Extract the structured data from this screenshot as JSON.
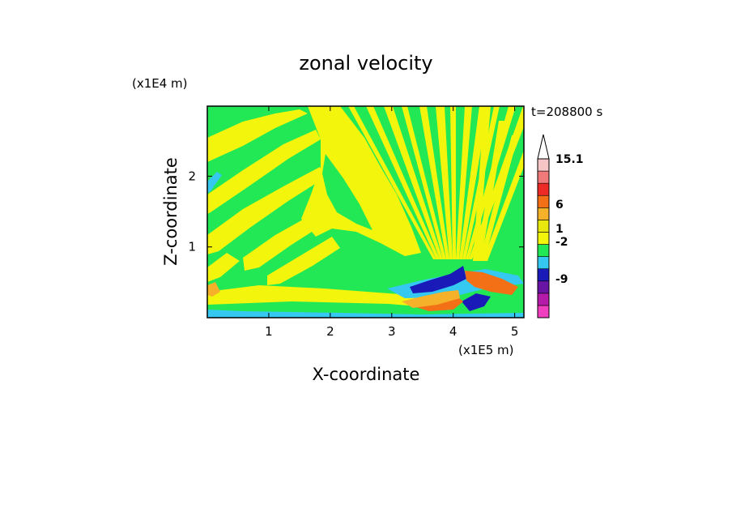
{
  "chart_data": {
    "type": "heatmap",
    "title": "zonal velocity",
    "time_label": "t=208800 s",
    "xlabel": "X-coordinate",
    "ylabel": "Z-coordinate",
    "x_scale_label": "(x1E5 m)",
    "y_scale_label": "(x1E4 m)",
    "xlim": [
      0,
      5.15
    ],
    "ylim": [
      0,
      2.99
    ],
    "x_ticks": [
      1,
      2,
      3,
      4,
      5
    ],
    "y_ticks": [
      1,
      2
    ],
    "colorbar": {
      "labels": [
        {
          "text": "15.1",
          "value": 15.1
        },
        {
          "text": "6",
          "value": 6
        },
        {
          "text": "1",
          "value": 1
        },
        {
          "text": "-2",
          "value": -2
        },
        {
          "text": "-9",
          "value": -9
        }
      ],
      "levels": [
        {
          "color": "#f03ec0"
        },
        {
          "color": "#b41ba8"
        },
        {
          "color": "#6a14a6"
        },
        {
          "color": "#1a1ab8"
        },
        {
          "color": "#35c8f0"
        },
        {
          "color": "#22e855"
        },
        {
          "color": "#f3f50d"
        },
        {
          "color": "#e8e80e"
        },
        {
          "color": "#f5b12a"
        },
        {
          "color": "#f37016"
        },
        {
          "color": "#ee2a26"
        },
        {
          "color": "#f07a7a"
        },
        {
          "color": "#f6c6c6"
        }
      ]
    },
    "colors": {
      "yellow": "#f3f50d",
      "green": "#22e855",
      "cyan": "#35c8f0",
      "dark_blue": "#1a1ab8",
      "orange": "#f37016",
      "light_orange": "#f5b12a"
    }
  }
}
